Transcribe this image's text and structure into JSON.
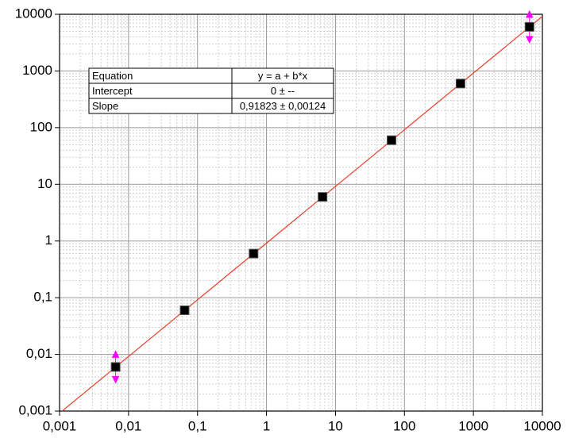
{
  "chart_data": {
    "type": "scatter",
    "log_x": true,
    "log_y": true,
    "grid": true,
    "minor_grid": true,
    "xlim": [
      0.001,
      10000
    ],
    "ylim": [
      0.001,
      10000
    ],
    "xticks": [
      {
        "value": 0.001,
        "label": "0,001"
      },
      {
        "value": 0.01,
        "label": "0,01"
      },
      {
        "value": 0.1,
        "label": "0,1"
      },
      1,
      10,
      100,
      1000,
      10000
    ],
    "yticks": [
      {
        "value": 0.001,
        "label": "0,001"
      },
      {
        "value": 0.01,
        "label": "0,01"
      },
      {
        "value": 0.1,
        "label": "0,1"
      },
      1,
      10,
      100,
      1000,
      10000
    ],
    "series": [
      {
        "color": "#000000",
        "x": [
          0.0065,
          0.065,
          0.65,
          6.5,
          65,
          650,
          6500
        ],
        "values": [
          0.006,
          0.06,
          0.6,
          6,
          60,
          600,
          6000
        ]
      }
    ],
    "fit": {
      "color": "#e8402a",
      "x": [
        0.001,
        10000
      ],
      "values": [
        0.00091823,
        9182.3
      ]
    },
    "table": {
      "rows": [
        [
          "Equation",
          "y = a + b*x"
        ],
        [
          "Intercept",
          "0 ± --"
        ],
        [
          "Slope",
          "0,91823 ± 0,00124"
        ]
      ]
    }
  }
}
